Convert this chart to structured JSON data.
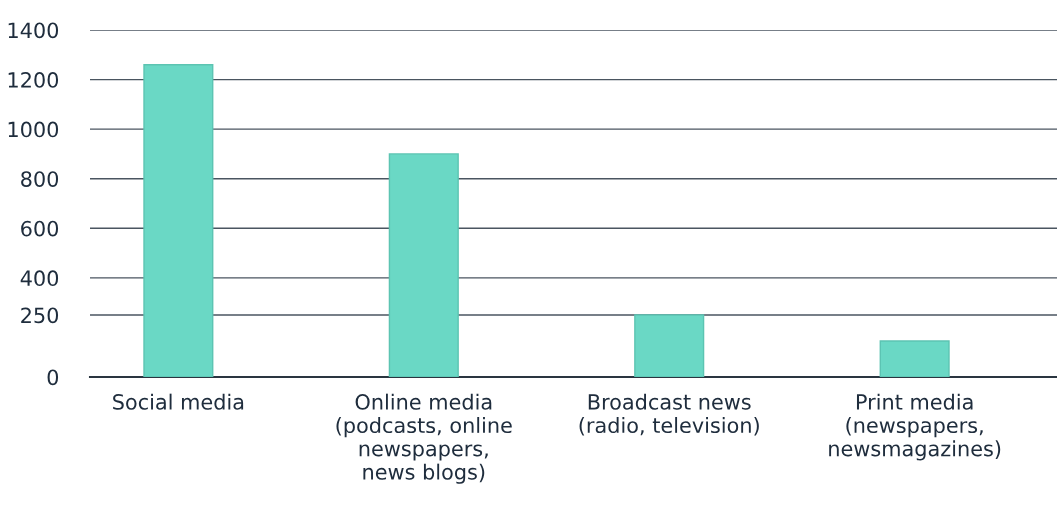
{
  "chart_data": {
    "type": "bar",
    "categories": [
      "Social media",
      "Online media\n(podcasts, online\nnewspapers,\nnews blogs)",
      "Broadcast news\n(radio, television)",
      "Print media\n(newspapers,\nnewsmagazines)"
    ],
    "values": [
      1260,
      900,
      250,
      145
    ],
    "color": "#6ad8c5",
    "ylim": [
      0,
      1400
    ],
    "yticks": [
      0,
      250,
      400,
      600,
      800,
      1000,
      1200,
      1400
    ],
    "grid": "y"
  }
}
